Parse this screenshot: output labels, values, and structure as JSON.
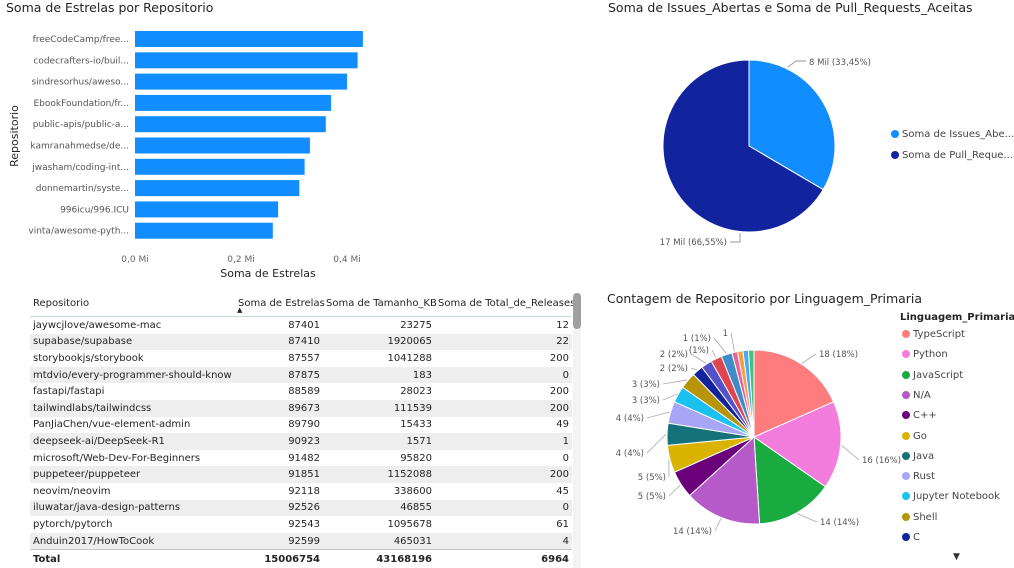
{
  "bar_chart": {
    "title": "Soma de Estrelas por Repositorio",
    "chart_data": {
      "type": "bar",
      "orientation": "horizontal",
      "categories": [
        "freeCodeCamp/free...",
        "codecrafters-io/buil...",
        "sindresorhus/aweso...",
        "EbookFoundation/fr...",
        "public-apis/public-a...",
        "kamranahmedse/de...",
        "jwasham/coding-int...",
        "donnemartin/syste...",
        "996icu/996.ICU",
        "vinta/awesome-pyth..."
      ],
      "values": [
        0.43,
        0.42,
        0.4,
        0.37,
        0.36,
        0.33,
        0.32,
        0.31,
        0.27,
        0.26
      ],
      "xlabel": "Soma de Estrelas",
      "ylabel": "Repositorio",
      "xticks": [
        "0,0 Mi",
        "0,2 Mi",
        "0,4 Mi"
      ],
      "xlim": [
        0,
        0.45
      ],
      "color": "#118dff"
    }
  },
  "pie1": {
    "title": "Soma de Issues_Abertas e Soma de Pull_Requests_Aceitas",
    "chart_data": {
      "type": "pie",
      "slices": [
        {
          "name": "Soma de Issues_Abe...",
          "value": 33.45,
          "label": "8 Mil (33,45%)",
          "color": "#118dff"
        },
        {
          "name": "Soma de Pull_Reque...",
          "value": 66.55,
          "label": "17 Mil (66,55%)",
          "color": "#12239e"
        }
      ]
    }
  },
  "pie2": {
    "title": "Contagem de Repositorio por Linguagem_Primaria",
    "legend_title": "Linguagem_Primaria",
    "chart_data": {
      "type": "pie",
      "slices": [
        {
          "name": "TypeScript",
          "value": 18,
          "label": "18 (18%)",
          "color": "#fd7c7e"
        },
        {
          "name": "Python",
          "value": 16,
          "label": "16 (16%)",
          "color": "#f37ddc"
        },
        {
          "name": "JavaScript",
          "value": 14,
          "label": "14 (14%)",
          "color": "#1aab40"
        },
        {
          "name": "N/A",
          "value": 14,
          "label": "14 (14%)",
          "color": "#b55ac8"
        },
        {
          "name": "C++",
          "value": 5,
          "label": "5 (5%)",
          "color": "#6b007b"
        },
        {
          "name": "Go",
          "value": 5,
          "label": "5 (5%)",
          "color": "#d9b300"
        },
        {
          "name": "Java",
          "value": 4,
          "label": "4 (4%)",
          "color": "#15717a"
        },
        {
          "name": "Rust",
          "value": 4,
          "label": "4 (4%)",
          "color": "#a7a6f6"
        },
        {
          "name": "Jupyter Notebook",
          "value": 3,
          "label": "3 (3%)",
          "color": "#1ac1ef"
        },
        {
          "name": "Shell",
          "value": 3,
          "label": "3 (3%)",
          "color": "#b8940a"
        },
        {
          "name": "C",
          "value": 2,
          "label": "2 (2%)",
          "color": "#12239e"
        },
        {
          "name": "",
          "value": 2,
          "label": "2 (2%)",
          "color": "#5451c9"
        },
        {
          "name": "",
          "value": 2,
          "label": "(1%)",
          "color": "#e0444e"
        },
        {
          "name": "",
          "value": 2,
          "label": "1 (1%)",
          "color": "#3f8ccb"
        },
        {
          "name": "",
          "value": 1,
          "label": "1",
          "color": "#ee5fa0"
        },
        {
          "name": "",
          "value": 1,
          "label": "",
          "color": "#f2a140"
        },
        {
          "name": "",
          "value": 1,
          "label": "",
          "color": "#4aa9f2"
        },
        {
          "name": "",
          "value": 1,
          "label": "",
          "color": "#3fc27b"
        }
      ]
    },
    "legend": [
      "TypeScript",
      "Python",
      "JavaScript",
      "N/A",
      "C++",
      "Go",
      "Java",
      "Rust",
      "Jupyter Notebook",
      "Shell",
      "C"
    ]
  },
  "table": {
    "headers": [
      "Repositorio",
      "Soma de Estrelas",
      "Soma de Tamanho_KB",
      "Soma de Total_de_Releases"
    ],
    "rows": [
      [
        "jaywcjlove/awesome-mac",
        "87401",
        "23275",
        "12"
      ],
      [
        "supabase/supabase",
        "87410",
        "1920065",
        "22"
      ],
      [
        "storybookjs/storybook",
        "87557",
        "1041288",
        "200"
      ],
      [
        "mtdvio/every-programmer-should-know",
        "87875",
        "183",
        "0"
      ],
      [
        "fastapi/fastapi",
        "88589",
        "28023",
        "200"
      ],
      [
        "tailwindlabs/tailwindcss",
        "89673",
        "111539",
        "200"
      ],
      [
        "PanJiaChen/vue-element-admin",
        "89790",
        "15433",
        "49"
      ],
      [
        "deepseek-ai/DeepSeek-R1",
        "90923",
        "1571",
        "1"
      ],
      [
        "microsoft/Web-Dev-For-Beginners",
        "91482",
        "95820",
        "0"
      ],
      [
        "puppeteer/puppeteer",
        "91851",
        "1152088",
        "200"
      ],
      [
        "neovim/neovim",
        "92118",
        "338600",
        "45"
      ],
      [
        "iluwatar/java-design-patterns",
        "92526",
        "46855",
        "0"
      ],
      [
        "pytorch/pytorch",
        "92543",
        "1095678",
        "61"
      ],
      [
        "Anduin2017/HowToCook",
        "92599",
        "465031",
        "4"
      ]
    ],
    "total": [
      "Total",
      "15006754",
      "43168196",
      "6964"
    ]
  }
}
